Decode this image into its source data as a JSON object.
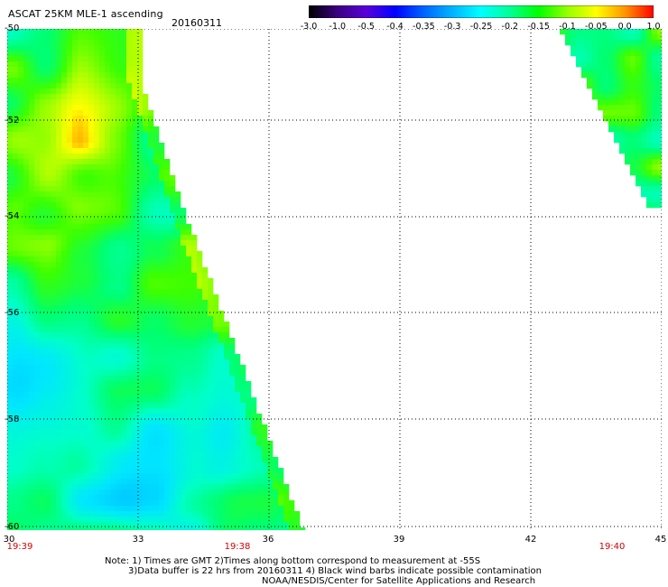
{
  "header": {
    "title": "ASCAT 25KM MLE-1 ascending",
    "date": "20160311"
  },
  "colorbar": {
    "labels": [
      "-3.0",
      "-1.0",
      "-0.5",
      "-0.4",
      "-0.35",
      "-0.3",
      "-0.25",
      "-0.2",
      "-0.15",
      "-0.1",
      "-0.05",
      "0.0",
      "1.0"
    ],
    "colors": [
      "#000000",
      "#3a0080",
      "#5a00d8",
      "#0000ff",
      "#0064ff",
      "#00b4ff",
      "#00ffff",
      "#00ff96",
      "#00ff00",
      "#96ff00",
      "#ffff00",
      "#ff9600",
      "#ff0000"
    ]
  },
  "map": {
    "lat_labels": [
      "-50",
      "-52",
      "-54",
      "-56",
      "-58",
      "-60"
    ],
    "lon_labels": [
      "30",
      "33",
      "36",
      "39",
      "42",
      "45"
    ],
    "time_labels": [
      "19:39",
      "19:38",
      "19:40"
    ]
  },
  "notes": {
    "line1": "Note: 1) Times are GMT 2)Times along bottom correspond to measurement at -55S",
    "line2": "3)Data buffer is 22 hrs from 20160311 4) Black wind barbs indicate possible contamination",
    "line3": "NOAA/NESDIS/Center for Satellite Applications and Research"
  }
}
